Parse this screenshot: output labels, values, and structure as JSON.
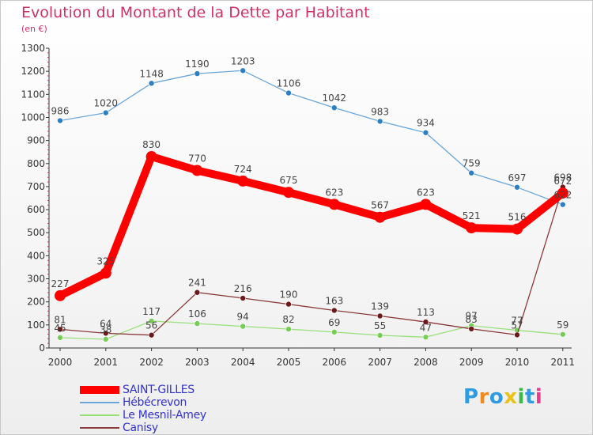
{
  "title": "Evolution du Montant de la Dette par Habitant",
  "unit_label": "(en €)",
  "brand": {
    "text": "Proxiti",
    "colors": [
      "#2f9be0",
      "#f08c1e",
      "#2f9be0",
      "#e8c21a",
      "#3fb84a",
      "#2f9be0",
      "#e83b8c"
    ]
  },
  "colors": {
    "title": "#cc3366",
    "axis": "#333333",
    "grid_dots": "#cc3366",
    "legend_text": "#3333cc"
  },
  "chart_data": {
    "type": "line",
    "title": "Evolution du Montant de la Dette par Habitant",
    "subtitle": "(en €)",
    "x": [
      2000,
      2001,
      2002,
      2003,
      2004,
      2005,
      2006,
      2007,
      2008,
      2009,
      2010,
      2011
    ],
    "ylim": [
      0,
      1300
    ],
    "yticks": [
      0,
      100,
      200,
      300,
      400,
      500,
      600,
      700,
      800,
      900,
      1000,
      1100,
      1200,
      1300
    ],
    "grid": true,
    "legend_position": "bottom-left",
    "series": [
      {
        "name": "SAINT-GILLES",
        "color": "#ff0000",
        "marker": "#ff0000",
        "values": [
          227,
          325,
          830,
          770,
          724,
          675,
          623,
          567,
          623,
          521,
          516,
          672
        ],
        "labels": [
          "227",
          "325",
          "830",
          "770",
          "724",
          "675",
          "623",
          "567",
          "623",
          "521",
          "516",
          "672"
        ]
      },
      {
        "name": "Hébécrevon",
        "color": "#6aa6d8",
        "marker": "#2e7fc2",
        "values": [
          986,
          1020,
          1148,
          1190,
          1203,
          1106,
          1042,
          983,
          934,
          759,
          697,
          622
        ],
        "labels": [
          "986",
          "1020",
          "1148",
          "1190",
          "1203",
          "1106",
          "1042",
          "983",
          "934",
          "759",
          "697",
          "622"
        ]
      },
      {
        "name": "Le Mesnil-Amey",
        "color": "#99e07a",
        "marker": "#77cc55",
        "values": [
          45,
          38,
          117,
          106,
          94,
          82,
          69,
          55,
          47,
          97,
          77,
          59
        ],
        "labels": [
          "45",
          "38",
          "117",
          "106",
          "94",
          "82",
          "69",
          "55",
          "47",
          "97",
          "77",
          "59"
        ]
      },
      {
        "name": "Canisy",
        "color": "#8a3a3a",
        "marker": "#6a1a1a",
        "values": [
          81,
          64,
          56,
          241,
          216,
          190,
          163,
          139,
          113,
          83,
          57,
          698
        ],
        "labels": [
          "81",
          "64",
          "56",
          "241",
          "216",
          "190",
          "163",
          "139",
          "113",
          "83",
          "57",
          "698"
        ]
      }
    ]
  }
}
